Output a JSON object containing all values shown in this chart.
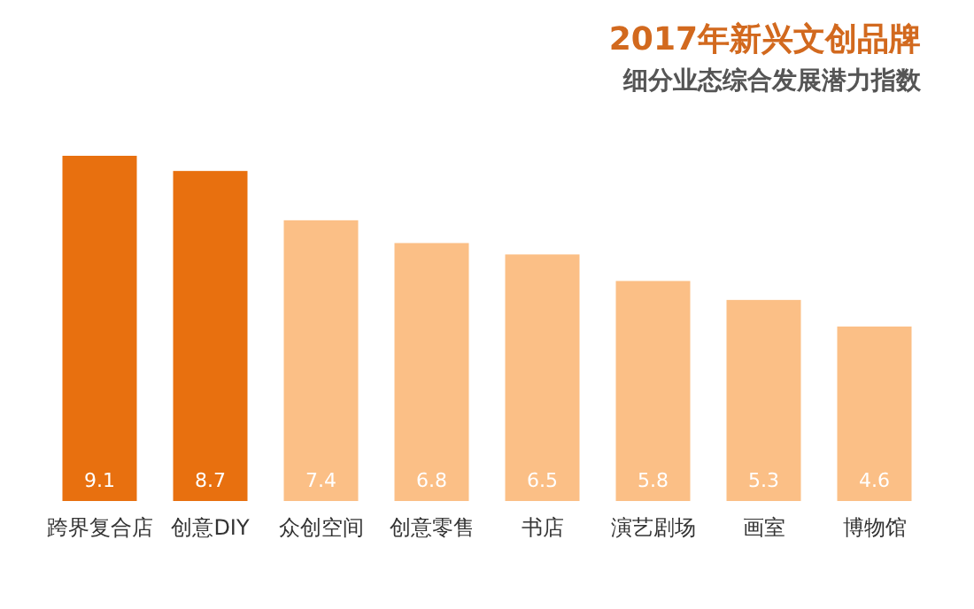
{
  "chart_data": {
    "type": "bar",
    "title": "2017年新兴文创品牌",
    "subtitle": "细分业态综合发展潜力指数",
    "categories": [
      "跨界复合店",
      "创意DIY",
      "众创空间",
      "创意零售",
      "书店",
      "演艺剧场",
      "画室",
      "博物馆"
    ],
    "values": [
      9.1,
      8.7,
      7.4,
      6.8,
      6.5,
      5.8,
      5.3,
      4.6
    ],
    "colors": [
      "#e8700f",
      "#e8700f",
      "#fbbf86",
      "#fbbf86",
      "#fbbf86",
      "#fbbf86",
      "#fbbf86",
      "#fbbf86"
    ],
    "data_labels": true
  }
}
